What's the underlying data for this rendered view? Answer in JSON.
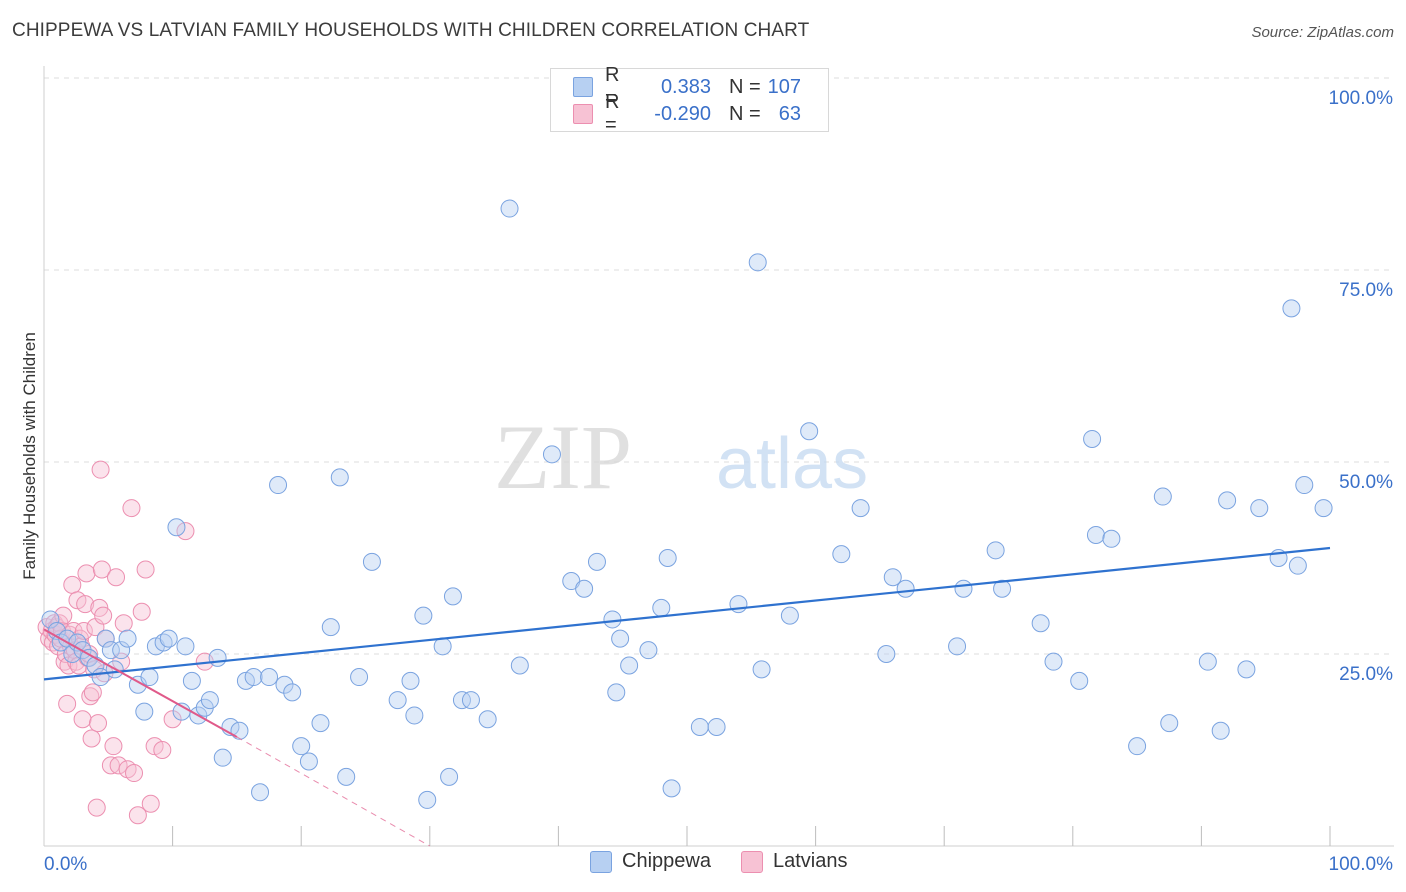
{
  "title": "CHIPPEWA VS LATVIAN FAMILY HOUSEHOLDS WITH CHILDREN CORRELATION CHART",
  "source": "Source: ZipAtlas.com",
  "watermark": {
    "zip": "ZIP",
    "atlas": "atlas"
  },
  "colors": {
    "blue_fill": "#b7d0f2",
    "blue_stroke": "#7aa3e0",
    "blue_line": "#2f72cf",
    "pink_fill": "#f7c2d4",
    "pink_stroke": "#ec8fb0",
    "pink_line": "#e05a8a",
    "tick_text": "#3a70c9",
    "grid": "#dddddd"
  },
  "legend": {
    "rows": [
      {
        "series": "Chippewa",
        "r_label": "R =",
        "r_value": "0.383",
        "n_label": "N =",
        "n_value": "107"
      },
      {
        "series": "Latvians",
        "r_label": "R =",
        "r_value": "-0.290",
        "n_label": "N =",
        "n_value": "63"
      }
    ]
  },
  "bottom_legend": {
    "chippewa": "Chippewa",
    "latvians": "Latvians"
  },
  "chart_data": {
    "type": "scatter",
    "title": "CHIPPEWA VS LATVIAN FAMILY HOUSEHOLDS WITH CHILDREN CORRELATION CHART",
    "xlabel": "",
    "ylabel": "Family Households with Children",
    "xlim": [
      0,
      100
    ],
    "ylim": [
      0,
      100
    ],
    "x_tick_labels": [
      "0.0%",
      "100.0%"
    ],
    "y_ticks": [
      25,
      50,
      75,
      100
    ],
    "y_tick_labels": [
      "25.0%",
      "50.0%",
      "75.0%",
      "100.0%"
    ],
    "grid": true,
    "series": [
      {
        "name": "Chippewa",
        "color": "blue",
        "trend": {
          "x0": 0,
          "y0": 21.7,
          "x1": 100,
          "y1": 38.8
        },
        "points": [
          [
            0.5,
            29.5
          ],
          [
            1,
            28
          ],
          [
            1.3,
            26.5
          ],
          [
            1.8,
            27
          ],
          [
            2.2,
            25
          ],
          [
            2.6,
            26.5
          ],
          [
            3,
            25.5
          ],
          [
            3.5,
            24.5
          ],
          [
            4,
            23.5
          ],
          [
            4.4,
            22
          ],
          [
            4.8,
            27
          ],
          [
            5.2,
            25.5
          ],
          [
            5.5,
            23
          ],
          [
            6,
            25.5
          ],
          [
            6.5,
            27
          ],
          [
            7.3,
            21
          ],
          [
            7.8,
            17.5
          ],
          [
            8.2,
            22
          ],
          [
            8.7,
            26
          ],
          [
            9.3,
            26.5
          ],
          [
            9.7,
            27
          ],
          [
            10.3,
            41.5
          ],
          [
            10.7,
            17.5
          ],
          [
            11,
            26
          ],
          [
            11.5,
            21.5
          ],
          [
            12,
            17
          ],
          [
            12.5,
            18
          ],
          [
            12.9,
            19
          ],
          [
            13.5,
            24.5
          ],
          [
            13.9,
            11.5
          ],
          [
            14.5,
            15.5
          ],
          [
            15.2,
            15
          ],
          [
            15.7,
            21.5
          ],
          [
            16.3,
            22
          ],
          [
            16.8,
            7
          ],
          [
            17.5,
            22
          ],
          [
            18.2,
            47
          ],
          [
            18.7,
            21
          ],
          [
            19.3,
            20
          ],
          [
            20,
            13
          ],
          [
            20.6,
            11
          ],
          [
            21.5,
            16
          ],
          [
            22.3,
            28.5
          ],
          [
            23,
            48
          ],
          [
            23.5,
            9
          ],
          [
            24.5,
            22
          ],
          [
            25.5,
            37
          ],
          [
            27.5,
            19
          ],
          [
            28.5,
            21.5
          ],
          [
            28.8,
            17
          ],
          [
            29.5,
            30
          ],
          [
            29.8,
            6
          ],
          [
            31,
            26
          ],
          [
            31.5,
            9
          ],
          [
            31.8,
            32.5
          ],
          [
            32.5,
            19
          ],
          [
            33.2,
            19
          ],
          [
            34.5,
            16.5
          ],
          [
            36.2,
            83
          ],
          [
            37,
            23.5
          ],
          [
            39.5,
            51
          ],
          [
            41,
            34.5
          ],
          [
            42,
            33.5
          ],
          [
            43,
            37
          ],
          [
            44.2,
            29.5
          ],
          [
            44.5,
            20
          ],
          [
            44.8,
            27
          ],
          [
            45.5,
            23.5
          ],
          [
            47,
            25.5
          ],
          [
            48,
            31
          ],
          [
            48.5,
            37.5
          ],
          [
            48.8,
            7.5
          ],
          [
            51,
            15.5
          ],
          [
            52.3,
            15.5
          ],
          [
            54,
            31.5
          ],
          [
            55.5,
            76
          ],
          [
            55.8,
            23
          ],
          [
            58,
            30
          ],
          [
            59.5,
            54
          ],
          [
            62,
            38
          ],
          [
            63.5,
            44
          ],
          [
            65.5,
            25
          ],
          [
            66,
            35
          ],
          [
            67,
            33.5
          ],
          [
            71,
            26
          ],
          [
            71.5,
            33.5
          ],
          [
            74,
            38.5
          ],
          [
            74.5,
            33.5
          ],
          [
            77.5,
            29
          ],
          [
            78.5,
            24
          ],
          [
            80.5,
            21.5
          ],
          [
            81.5,
            53
          ],
          [
            81.8,
            40.5
          ],
          [
            83,
            40
          ],
          [
            85,
            13
          ],
          [
            87,
            45.5
          ],
          [
            87.5,
            16
          ],
          [
            90.5,
            24
          ],
          [
            91.5,
            15
          ],
          [
            92,
            45
          ],
          [
            93.5,
            23
          ],
          [
            94.5,
            44
          ],
          [
            96,
            37.5
          ],
          [
            97,
            70
          ],
          [
            97.5,
            36.5
          ],
          [
            98,
            47
          ],
          [
            99.5,
            44
          ]
        ]
      },
      {
        "name": "Latvians",
        "color": "pink",
        "trend": {
          "x0": 0,
          "y0": 28.2,
          "x1": 15,
          "y1": 14.2,
          "dash_x1": 30,
          "dash_y1": 0
        },
        "points": [
          [
            0.2,
            28.5
          ],
          [
            0.4,
            27
          ],
          [
            0.6,
            28
          ],
          [
            0.7,
            26.5
          ],
          [
            0.8,
            29
          ],
          [
            0.9,
            27.5
          ],
          [
            1,
            28.5
          ],
          [
            1.1,
            26
          ],
          [
            1.2,
            29
          ],
          [
            1.3,
            27
          ],
          [
            1.4,
            28
          ],
          [
            1.5,
            30
          ],
          [
            1.6,
            24
          ],
          [
            1.7,
            25
          ],
          [
            1.8,
            18.5
          ],
          [
            1.9,
            23.5
          ],
          [
            2,
            27.5
          ],
          [
            2.1,
            26
          ],
          [
            2.2,
            34
          ],
          [
            2.3,
            28
          ],
          [
            2.4,
            25.5
          ],
          [
            2.5,
            24
          ],
          [
            2.6,
            32
          ],
          [
            2.7,
            23.5
          ],
          [
            2.8,
            27
          ],
          [
            2.9,
            26
          ],
          [
            3,
            16.5
          ],
          [
            3.1,
            28
          ],
          [
            3.2,
            31.5
          ],
          [
            3.3,
            35.5
          ],
          [
            3.4,
            24.5
          ],
          [
            3.5,
            25
          ],
          [
            3.6,
            19.5
          ],
          [
            3.7,
            14
          ],
          [
            3.8,
            20
          ],
          [
            3.9,
            23
          ],
          [
            4,
            28.5
          ],
          [
            4.1,
            5
          ],
          [
            4.2,
            16
          ],
          [
            4.3,
            31
          ],
          [
            4.4,
            49
          ],
          [
            4.5,
            36
          ],
          [
            4.6,
            30
          ],
          [
            4.7,
            22.5
          ],
          [
            4.8,
            27
          ],
          [
            5.2,
            10.5
          ],
          [
            5.4,
            13
          ],
          [
            5.6,
            35
          ],
          [
            5.8,
            10.5
          ],
          [
            6,
            24
          ],
          [
            6.2,
            29
          ],
          [
            6.5,
            10
          ],
          [
            6.8,
            44
          ],
          [
            7,
            9.5
          ],
          [
            7.3,
            4
          ],
          [
            7.6,
            30.5
          ],
          [
            7.9,
            36
          ],
          [
            8.3,
            5.5
          ],
          [
            8.6,
            13
          ],
          [
            9.2,
            12.5
          ],
          [
            10,
            16.5
          ],
          [
            11,
            41
          ],
          [
            12.5,
            24
          ]
        ]
      }
    ]
  }
}
